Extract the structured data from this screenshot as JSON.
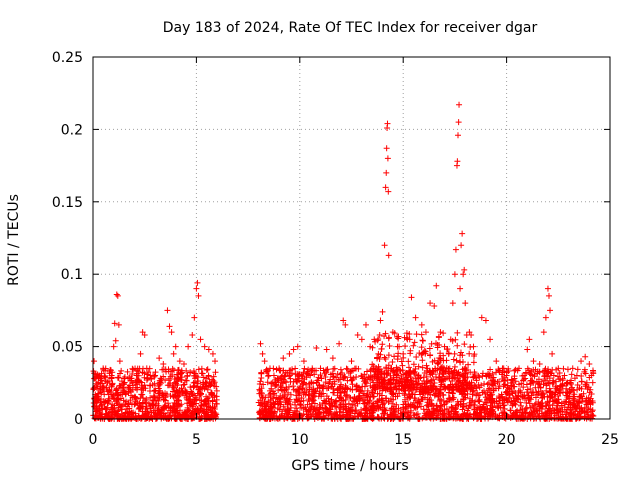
{
  "chart_data": {
    "type": "scatter",
    "title": "Day 183 of 2024, Rate Of TEC Index for receiver dgar",
    "xlabel": "GPS time / hours",
    "ylabel": "ROTI / TECUs",
    "xlim": [
      0,
      25
    ],
    "ylim": [
      0,
      0.25
    ],
    "xticks": [
      0,
      5,
      10,
      15,
      20,
      25
    ],
    "yticks": [
      0,
      0.05,
      0.1,
      0.15,
      0.2,
      0.25
    ],
    "xtick_labels": [
      "0",
      "5",
      "10",
      "15",
      "20",
      "25"
    ],
    "ytick_labels": [
      "0",
      "0.05",
      "0.1",
      "0.15",
      "0.2",
      "0.25"
    ],
    "grid": true,
    "marker": "+",
    "series": [
      {
        "name": "ROTI",
        "color": "#ff0000",
        "points": [
          [
            0.05,
            0.04
          ],
          [
            0.1,
            0.022
          ],
          [
            0.2,
            0.015
          ],
          [
            0.3,
            0.03
          ],
          [
            0.4,
            0.018
          ],
          [
            0.5,
            0.034
          ],
          [
            0.6,
            0.012
          ],
          [
            0.7,
            0.025
          ],
          [
            0.8,
            0.02
          ],
          [
            0.9,
            0.03
          ],
          [
            1.0,
            0.05
          ],
          [
            1.05,
            0.066
          ],
          [
            1.1,
            0.054
          ],
          [
            1.15,
            0.086
          ],
          [
            1.2,
            0.085
          ],
          [
            1.25,
            0.065
          ],
          [
            1.3,
            0.04
          ],
          [
            1.5,
            0.028
          ],
          [
            1.7,
            0.022
          ],
          [
            1.9,
            0.025
          ],
          [
            2.1,
            0.03
          ],
          [
            2.3,
            0.045
          ],
          [
            2.4,
            0.06
          ],
          [
            2.5,
            0.058
          ],
          [
            2.6,
            0.035
          ],
          [
            2.8,
            0.028
          ],
          [
            3.0,
            0.03
          ],
          [
            3.2,
            0.042
          ],
          [
            3.4,
            0.038
          ],
          [
            3.6,
            0.075
          ],
          [
            3.7,
            0.064
          ],
          [
            3.8,
            0.06
          ],
          [
            3.9,
            0.045
          ],
          [
            4.0,
            0.05
          ],
          [
            4.2,
            0.04
          ],
          [
            4.4,
            0.038
          ],
          [
            4.6,
            0.05
          ],
          [
            4.8,
            0.058
          ],
          [
            4.9,
            0.07
          ],
          [
            5.0,
            0.09
          ],
          [
            5.05,
            0.094
          ],
          [
            5.1,
            0.085
          ],
          [
            5.2,
            0.055
          ],
          [
            5.4,
            0.05
          ],
          [
            5.6,
            0.048
          ],
          [
            5.8,
            0.045
          ],
          [
            5.9,
            0.04
          ],
          [
            1.6,
            0.012
          ],
          [
            2.0,
            0.01
          ],
          [
            3.5,
            0.015
          ],
          [
            8.1,
            0.052
          ],
          [
            8.2,
            0.045
          ],
          [
            8.3,
            0.04
          ],
          [
            8.5,
            0.03
          ],
          [
            8.8,
            0.025
          ],
          [
            9.0,
            0.035
          ],
          [
            9.2,
            0.042
          ],
          [
            9.5,
            0.045
          ],
          [
            9.7,
            0.048
          ],
          [
            9.9,
            0.05
          ],
          [
            10.2,
            0.04
          ],
          [
            10.5,
            0.03
          ],
          [
            10.8,
            0.049
          ],
          [
            11.0,
            0.035
          ],
          [
            11.3,
            0.048
          ],
          [
            11.6,
            0.042
          ],
          [
            11.9,
            0.052
          ],
          [
            12.1,
            0.068
          ],
          [
            12.2,
            0.065
          ],
          [
            12.5,
            0.04
          ],
          [
            12.8,
            0.058
          ],
          [
            13.0,
            0.055
          ],
          [
            13.2,
            0.065
          ],
          [
            13.4,
            0.05
          ],
          [
            13.6,
            0.055
          ],
          [
            13.8,
            0.045
          ],
          [
            13.9,
            0.068
          ],
          [
            14.0,
            0.074
          ],
          [
            14.1,
            0.12
          ],
          [
            14.15,
            0.16
          ],
          [
            14.18,
            0.17
          ],
          [
            14.2,
            0.187
          ],
          [
            14.22,
            0.201
          ],
          [
            14.24,
            0.204
          ],
          [
            14.26,
            0.18
          ],
          [
            14.28,
            0.157
          ],
          [
            14.3,
            0.113
          ],
          [
            14.5,
            0.06
          ],
          [
            14.8,
            0.05
          ],
          [
            15.0,
            0.045
          ],
          [
            15.2,
            0.055
          ],
          [
            15.4,
            0.084
          ],
          [
            15.6,
            0.07
          ],
          [
            15.9,
            0.065
          ],
          [
            16.1,
            0.06
          ],
          [
            16.3,
            0.08
          ],
          [
            16.5,
            0.078
          ],
          [
            16.6,
            0.092
          ],
          [
            16.8,
            0.06
          ],
          [
            17.0,
            0.05
          ],
          [
            17.2,
            0.045
          ],
          [
            17.3,
            0.055
          ],
          [
            17.4,
            0.08
          ],
          [
            17.5,
            0.1
          ],
          [
            17.55,
            0.117
          ],
          [
            17.6,
            0.175
          ],
          [
            17.62,
            0.178
          ],
          [
            17.65,
            0.196
          ],
          [
            17.68,
            0.205
          ],
          [
            17.7,
            0.217
          ],
          [
            17.75,
            0.09
          ],
          [
            17.8,
            0.12
          ],
          [
            17.85,
            0.128
          ],
          [
            17.9,
            0.1
          ],
          [
            17.95,
            0.103
          ],
          [
            18.0,
            0.08
          ],
          [
            18.2,
            0.06
          ],
          [
            18.4,
            0.05
          ],
          [
            18.8,
            0.07
          ],
          [
            19.0,
            0.068
          ],
          [
            19.2,
            0.055
          ],
          [
            19.5,
            0.04
          ],
          [
            19.8,
            0.035
          ],
          [
            20.0,
            0.03
          ],
          [
            20.3,
            0.025
          ],
          [
            20.6,
            0.035
          ],
          [
            20.9,
            0.028
          ],
          [
            21.0,
            0.048
          ],
          [
            21.1,
            0.055
          ],
          [
            21.3,
            0.04
          ],
          [
            21.6,
            0.038
          ],
          [
            21.8,
            0.06
          ],
          [
            21.9,
            0.07
          ],
          [
            22.0,
            0.09
          ],
          [
            22.05,
            0.085
          ],
          [
            22.1,
            0.075
          ],
          [
            22.2,
            0.045
          ],
          [
            22.5,
            0.035
          ],
          [
            22.8,
            0.03
          ],
          [
            23.1,
            0.025
          ],
          [
            23.4,
            0.03
          ],
          [
            23.6,
            0.04
          ],
          [
            23.8,
            0.043
          ],
          [
            24.0,
            0.038
          ],
          [
            24.1,
            0.03
          ],
          [
            19.0,
            0.015
          ],
          [
            15.8,
            0.012
          ],
          [
            12.0,
            0.015
          ],
          [
            10.0,
            0.012
          ],
          [
            23.0,
            0.01
          ]
        ]
      }
    ]
  },
  "density": {
    "segments": [
      {
        "start": 0.0,
        "end": 6.0,
        "low": 0.0,
        "high": 0.035,
        "count": 900
      },
      {
        "start": 8.0,
        "end": 24.2,
        "low": 0.0,
        "high": 0.035,
        "count": 2100
      },
      {
        "start": 13.5,
        "end": 18.5,
        "low": 0.02,
        "high": 0.06,
        "count": 300
      }
    ]
  }
}
